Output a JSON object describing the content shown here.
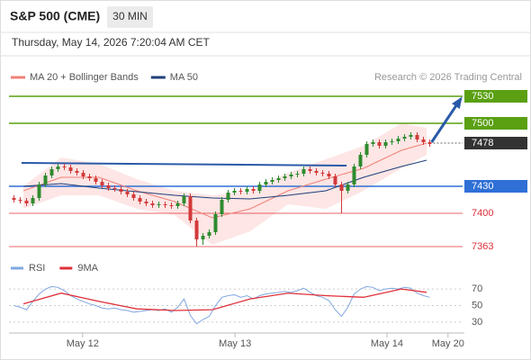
{
  "chart_data": {
    "type": "candlestick",
    "title": "S&P 500 (CME)",
    "timeframe": "30 MIN",
    "date": "Thursday, May 14, 2026 7:20:04 AM CET",
    "source": "Research © 2026 Trading Central",
    "up_color": "#2e8b2e",
    "down_color": "#d23a3a",
    "xlim": [
      0,
      72
    ],
    "xticks": [
      {
        "value": 11.4,
        "label": "May 12"
      },
      {
        "value": 35.6,
        "label": "May 13"
      },
      {
        "value": 59.7,
        "label": "May 14"
      },
      {
        "value": 69.4,
        "label": "May 20"
      }
    ],
    "ylim": [
      7358,
      7542
    ],
    "open": [
      7417,
      7415,
      7414,
      7411,
      7417,
      7432,
      7442,
      7449,
      7452,
      7451,
      7447,
      7445,
      7441,
      7439,
      7435,
      7431,
      7428,
      7427,
      7424,
      7421,
      7417,
      7413,
      7411,
      7409,
      7410,
      7409,
      7408,
      7411,
      7419,
      7392,
      7371,
      7375,
      7379,
      7399,
      7415,
      7423,
      7425,
      7424,
      7427,
      7425,
      7432,
      7435,
      7437,
      7439,
      7441,
      7443,
      7444,
      7449,
      7447,
      7445,
      7444,
      7441,
      7432,
      7425,
      7432,
      7452,
      7465,
      7477,
      7479,
      7475,
      7479,
      7480,
      7483,
      7485,
      7487,
      7482,
      7479
    ],
    "high": [
      7420,
      7418,
      7417,
      7420,
      7435,
      7445,
      7452,
      7455,
      7455,
      7454,
      7450,
      7448,
      7444,
      7442,
      7438,
      7434,
      7431,
      7430,
      7427,
      7424,
      7420,
      7416,
      7414,
      7413,
      7413,
      7412,
      7414,
      7422,
      7422,
      7395,
      7378,
      7382,
      7402,
      7418,
      7426,
      7428,
      7428,
      7430,
      7430,
      7435,
      7438,
      7440,
      7442,
      7444,
      7446,
      7447,
      7452,
      7452,
      7450,
      7448,
      7447,
      7444,
      7435,
      7435,
      7455,
      7468,
      7480,
      7482,
      7482,
      7482,
      7483,
      7486,
      7488,
      7490,
      7490,
      7485,
      7482
    ],
    "low": [
      7412,
      7411,
      7408,
      7408,
      7414,
      7429,
      7439,
      7446,
      7448,
      7444,
      7442,
      7438,
      7436,
      7432,
      7428,
      7425,
      7424,
      7421,
      7418,
      7414,
      7410,
      7408,
      7406,
      7406,
      7406,
      7405,
      7405,
      7408,
      7389,
      7363,
      7365,
      7372,
      7376,
      7396,
      7412,
      7420,
      7421,
      7421,
      7422,
      7422,
      7429,
      7432,
      7434,
      7436,
      7438,
      7440,
      7441,
      7444,
      7442,
      7441,
      7438,
      7429,
      7400,
      7422,
      7429,
      7449,
      7462,
      7474,
      7472,
      7472,
      7476,
      7477,
      7480,
      7482,
      7479,
      7476,
      7474
    ],
    "close": [
      7415,
      7414,
      7411,
      7417,
      7432,
      7442,
      7449,
      7452,
      7451,
      7447,
      7445,
      7441,
      7439,
      7435,
      7431,
      7428,
      7427,
      7424,
      7421,
      7417,
      7413,
      7411,
      7409,
      7410,
      7409,
      7408,
      7411,
      7419,
      7392,
      7371,
      7375,
      7379,
      7399,
      7415,
      7423,
      7425,
      7424,
      7427,
      7425,
      7432,
      7435,
      7437,
      7439,
      7441,
      7443,
      7444,
      7449,
      7447,
      7445,
      7444,
      7441,
      7432,
      7425,
      7432,
      7452,
      7465,
      7477,
      7479,
      7475,
      7479,
      7480,
      7483,
      7485,
      7487,
      7482,
      7479,
      7477
    ],
    "indicators": {
      "x": [
        2,
        8,
        14,
        20,
        26,
        32,
        38,
        44,
        50,
        56,
        62,
        66
      ],
      "series": [
        {
          "name": "MA 20 + Bollinger Bands",
          "color": "#f08078",
          "band_color": "#fde0de",
          "values": [
            7425,
            7440,
            7440,
            7425,
            7413,
            7395,
            7405,
            7425,
            7438,
            7450,
            7470,
            7478
          ],
          "upper": [
            7430,
            7462,
            7455,
            7438,
            7425,
            7420,
            7425,
            7445,
            7460,
            7475,
            7500,
            7495
          ],
          "lower": [
            7405,
            7420,
            7420,
            7405,
            7398,
            7365,
            7380,
            7410,
            7405,
            7425,
            7450,
            7465
          ]
        },
        {
          "name": "MA 50",
          "color": "#1f3f7a",
          "values": [
            7430,
            7433,
            7428,
            7424,
            7420,
            7417,
            7416,
            7420,
            7425,
            7440,
            7452,
            7459
          ]
        }
      ]
    },
    "levels": [
      {
        "value": 7530,
        "color": "#5aa012",
        "style": "box"
      },
      {
        "value": 7500,
        "color": "#5aa012",
        "style": "box"
      },
      {
        "value": 7478,
        "color": "#333333",
        "style": "current"
      },
      {
        "value": 7430,
        "color": "#2f6fd6",
        "style": "box"
      },
      {
        "value": 7400,
        "color": "#e0303a",
        "style": "text"
      },
      {
        "value": 7363,
        "color": "#e0303a",
        "style": "text"
      }
    ],
    "trendline": {
      "x": [
        1.7,
        53.3
      ],
      "y": [
        7456,
        7453
      ],
      "color": "#2a5aa8"
    },
    "arrow": {
      "x": [
        66.8,
        71.4
      ],
      "y": [
        7479,
        7527
      ],
      "color": "#2a5aa8"
    },
    "rsi": {
      "ylim": [
        19,
        93
      ],
      "yticks": [
        30,
        50,
        70
      ],
      "series": [
        {
          "name": "RSI",
          "color": "#7fa8e0",
          "values": [
            50,
            48,
            45,
            55,
            64,
            70,
            73,
            72,
            68,
            62,
            58,
            55,
            52,
            50,
            47,
            46,
            47,
            45,
            44,
            42,
            43,
            44,
            45,
            44,
            46,
            42,
            48,
            58,
            38,
            28,
            33,
            37,
            50,
            60,
            62,
            63,
            60,
            62,
            58,
            62,
            64,
            65,
            66,
            67,
            66,
            68,
            71,
            66,
            62,
            60,
            56,
            45,
            37,
            48,
            64,
            70,
            73,
            72,
            68,
            70,
            71,
            70,
            72,
            71,
            65,
            62,
            60
          ]
        },
        {
          "name": "9MA",
          "color": "#e0303a",
          "x": [
            2,
            8,
            14,
            20,
            26,
            32,
            38,
            44,
            50,
            56,
            62,
            66
          ],
          "values": [
            52,
            65,
            55,
            46,
            44,
            45,
            58,
            65,
            62,
            60,
            70,
            66
          ]
        }
      ]
    }
  }
}
